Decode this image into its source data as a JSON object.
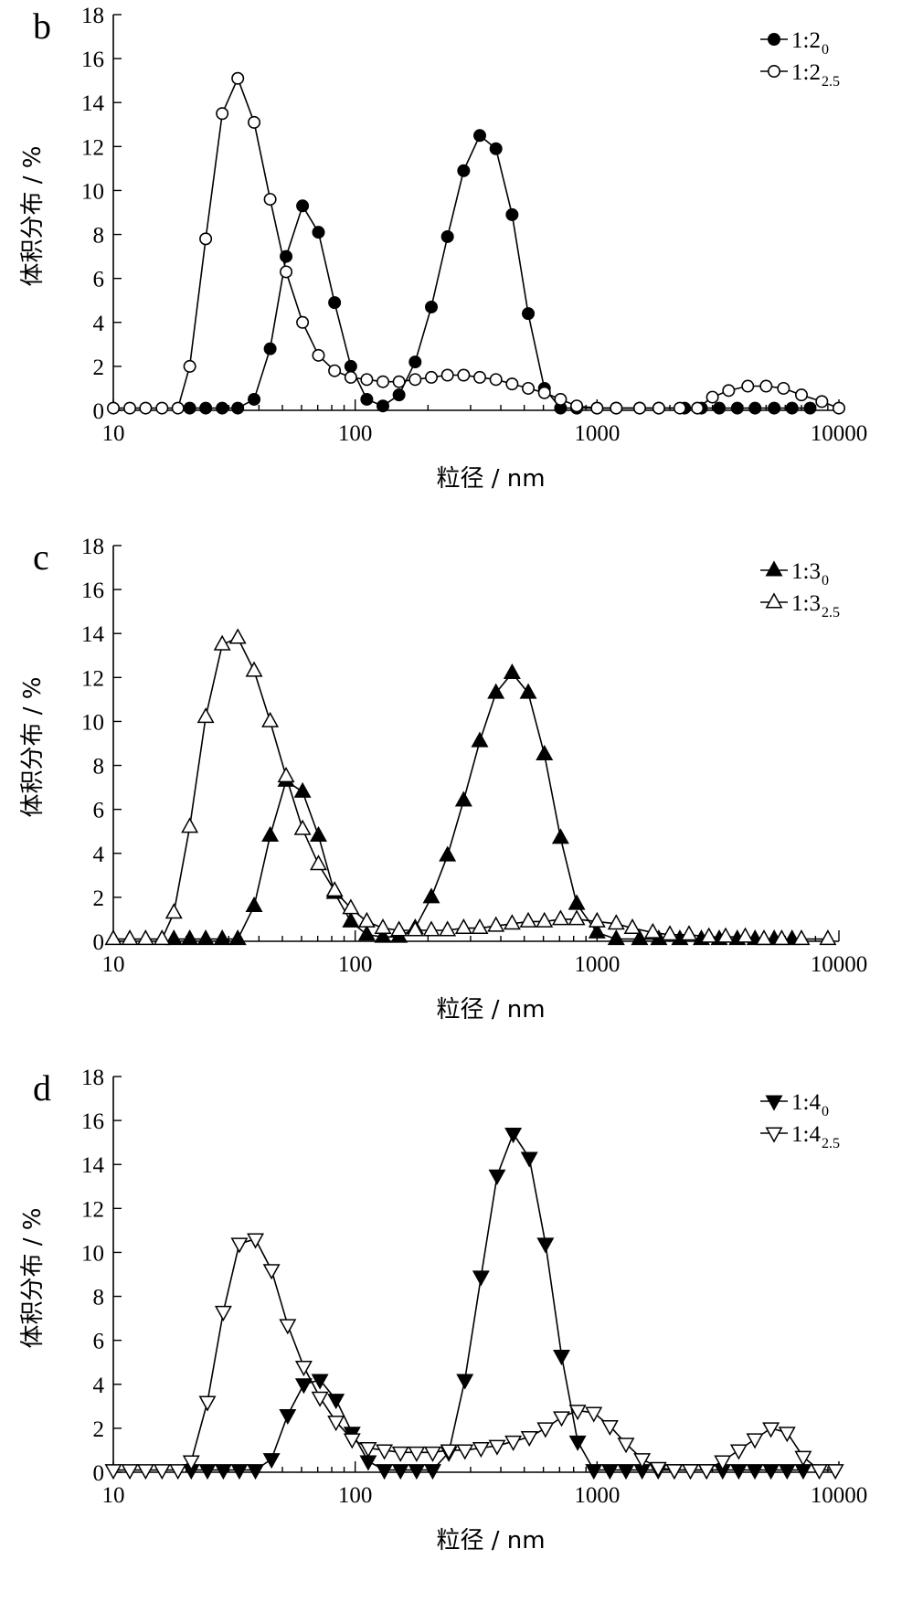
{
  "chart_data": [
    {
      "type": "line",
      "panel": "b",
      "xscale": "log",
      "xlim": [
        10,
        10000
      ],
      "ylim": [
        0,
        18
      ],
      "xticks": [
        "10",
        "100",
        "1000",
        "10000"
      ],
      "yticks": [
        "0",
        "2",
        "4",
        "6",
        "8",
        "10",
        "12",
        "14",
        "16",
        "18"
      ],
      "xlabel": "粒径 / nm",
      "ylabel": "体积分布 / %",
      "legend_position": "top-right",
      "series": [
        {
          "name": "1:2",
          "name_sub": "0",
          "marker": "circle-filled",
          "x": [
            20.7,
            24.1,
            28.2,
            32.7,
            38.2,
            44.5,
            51.8,
            60.6,
            70.5,
            82.2,
            95.9,
            111.7,
            130.2,
            151.8,
            177.0,
            206.5,
            240.8,
            280.8,
            327.4,
            381.9,
            445.4,
            519.4,
            605.8,
            706.5,
            824.0,
            1000,
            1200,
            1500,
            1800,
            2300,
            2700,
            3200,
            3800,
            4500,
            5400,
            6400,
            7600
          ],
          "y": [
            0.1,
            0.1,
            0.1,
            0.1,
            0.5,
            2.8,
            7.0,
            9.3,
            8.1,
            4.9,
            2.0,
            0.5,
            0.2,
            0.7,
            2.2,
            4.7,
            7.9,
            10.9,
            12.5,
            11.9,
            8.9,
            4.4,
            1.0,
            0.1,
            0.1,
            0.1,
            0.1,
            0.1,
            0.1,
            0.1,
            0.1,
            0.1,
            0.1,
            0.1,
            0.1,
            0.1,
            0.1
          ]
        },
        {
          "name": "1:2",
          "name_sub": "2.5",
          "marker": "circle-open",
          "x": [
            10,
            11.7,
            13.6,
            15.9,
            18.5,
            20.7,
            24.1,
            28.2,
            32.7,
            38.2,
            44.5,
            51.8,
            60.6,
            70.5,
            82.2,
            95.9,
            111.7,
            130.2,
            151.8,
            177.0,
            206.5,
            240.8,
            280.8,
            327.4,
            381.9,
            445.4,
            519.4,
            605.8,
            706.5,
            824.0,
            1000,
            1200,
            1500,
            1800,
            2200,
            2600,
            3000,
            3500,
            4200,
            5000,
            5900,
            7000,
            8500,
            10000
          ],
          "y": [
            0.1,
            0.1,
            0.1,
            0.1,
            0.1,
            2.0,
            7.8,
            13.5,
            15.1,
            13.1,
            9.6,
            6.3,
            4.0,
            2.5,
            1.8,
            1.5,
            1.4,
            1.3,
            1.3,
            1.4,
            1.5,
            1.6,
            1.6,
            1.5,
            1.4,
            1.2,
            1.0,
            0.8,
            0.5,
            0.2,
            0.1,
            0.1,
            0.1,
            0.1,
            0.1,
            0.1,
            0.6,
            0.9,
            1.1,
            1.1,
            1.0,
            0.7,
            0.4,
            0.1
          ]
        }
      ]
    },
    {
      "type": "line",
      "panel": "c",
      "xscale": "log",
      "xlim": [
        10,
        10000
      ],
      "ylim": [
        0,
        18
      ],
      "xticks": [
        "10",
        "100",
        "1000",
        "10000"
      ],
      "yticks": [
        "0",
        "2",
        "4",
        "6",
        "8",
        "10",
        "12",
        "14",
        "16",
        "18"
      ],
      "xlabel": "粒径 / nm",
      "ylabel": "体积分布 / %",
      "legend_position": "top-right",
      "series": [
        {
          "name": "1:3",
          "name_sub": "0",
          "marker": "triangle-up-filled",
          "x": [
            17.8,
            20.7,
            24.1,
            28.2,
            32.7,
            38.2,
            44.5,
            51.8,
            60.6,
            70.5,
            82.2,
            95.9,
            111.7,
            130.2,
            151.8,
            177.0,
            206.5,
            240.8,
            280.8,
            327.4,
            381.9,
            445.4,
            519.4,
            605.8,
            706.5,
            824.0,
            1000,
            1200,
            1500,
            1800,
            2200,
            2700,
            3200,
            3800,
            4500,
            5400,
            6400
          ],
          "y": [
            0.1,
            0.1,
            0.1,
            0.1,
            0.1,
            1.6,
            4.8,
            7.3,
            6.8,
            4.8,
            2.2,
            0.9,
            0.3,
            0.2,
            0.2,
            0.6,
            2.0,
            3.9,
            6.4,
            9.1,
            11.3,
            12.2,
            11.3,
            8.5,
            4.7,
            1.7,
            0.4,
            0.1,
            0.1,
            0.1,
            0.1,
            0.1,
            0.1,
            0.1,
            0.1,
            0.1,
            0.1
          ]
        },
        {
          "name": "1:3",
          "name_sub": "2.5",
          "marker": "triangle-up-open",
          "x": [
            10,
            11.7,
            13.6,
            15.9,
            17.8,
            20.7,
            24.1,
            28.2,
            32.7,
            38.2,
            44.5,
            51.8,
            60.6,
            70.5,
            82.2,
            95.9,
            111.7,
            130.2,
            151.8,
            177.0,
            206.5,
            240.8,
            280.8,
            327.4,
            381.9,
            445.4,
            519.4,
            605.8,
            706.5,
            824.0,
            1000,
            1200,
            1400,
            1700,
            2000,
            2400,
            2900,
            3400,
            4100,
            4900,
            5800,
            7000,
            9000
          ],
          "y": [
            0.1,
            0.1,
            0.1,
            0.1,
            1.3,
            5.2,
            10.2,
            13.5,
            13.8,
            12.3,
            10.0,
            7.5,
            5.1,
            3.5,
            2.3,
            1.5,
            0.9,
            0.6,
            0.5,
            0.5,
            0.5,
            0.5,
            0.6,
            0.6,
            0.7,
            0.8,
            0.9,
            0.9,
            1.0,
            1.0,
            0.9,
            0.8,
            0.6,
            0.4,
            0.3,
            0.3,
            0.2,
            0.2,
            0.2,
            0.1,
            0.1,
            0.1,
            0.1
          ]
        }
      ]
    },
    {
      "type": "line",
      "panel": "d",
      "xscale": "log",
      "xlim": [
        10,
        10000
      ],
      "ylim": [
        0,
        18
      ],
      "xticks": [
        "10",
        "100",
        "1000",
        "10000"
      ],
      "yticks": [
        "0",
        "2",
        "4",
        "6",
        "8",
        "10",
        "12",
        "14",
        "16",
        "18"
      ],
      "xlabel": "粒径 / nm",
      "ylabel": "体积分布 / %",
      "legend_position": "top-right",
      "series": [
        {
          "name": "1:4",
          "name_sub": "0",
          "marker": "triangle-down-filled",
          "x": [
            21.0,
            24.5,
            28.5,
            33.2,
            38.7,
            45.1,
            52.6,
            61.3,
            71.5,
            83.3,
            97.1,
            113.2,
            132.0,
            153.9,
            179.4,
            209.1,
            243.8,
            284.2,
            331.3,
            386.2,
            450.2,
            524.8,
            611.8,
            713.3,
            831.5,
            969.4,
            1130,
            1317,
            1536,
            1790,
            2087,
            2432,
            2836,
            3305,
            3853,
            4492,
            5236,
            6104,
            7116
          ],
          "y": [
            0.1,
            0.1,
            0.1,
            0.1,
            0.1,
            0.6,
            2.6,
            4.0,
            4.2,
            3.3,
            1.8,
            0.5,
            0.1,
            0.1,
            0.1,
            0.1,
            0.9,
            4.2,
            8.9,
            13.5,
            15.4,
            14.3,
            10.4,
            5.3,
            1.4,
            0.1,
            0.1,
            0.1,
            0.1,
            0.1,
            0.1,
            0.1,
            0.1,
            0.1,
            0.1,
            0.1,
            0.1,
            0.1,
            0.1
          ]
        },
        {
          "name": "1:4",
          "name_sub": "2.5",
          "marker": "triangle-down-open",
          "x": [
            10,
            11.7,
            13.6,
            15.9,
            18.5,
            21.0,
            24.5,
            28.5,
            33.2,
            38.7,
            45.1,
            52.6,
            61.3,
            71.5,
            83.3,
            97.1,
            113.2,
            132.0,
            153.9,
            179.4,
            209.1,
            243.8,
            284.2,
            331.3,
            386.2,
            450.2,
            524.8,
            611.8,
            713.3,
            831.5,
            969.4,
            1130,
            1317,
            1536,
            1790,
            2087,
            2432,
            2836,
            3305,
            3853,
            4492,
            5236,
            6104,
            7116,
            8295,
            9670
          ],
          "y": [
            0.1,
            0.1,
            0.1,
            0.1,
            0.1,
            0.5,
            3.2,
            7.3,
            10.4,
            10.6,
            9.2,
            6.7,
            4.8,
            3.4,
            2.3,
            1.5,
            1.1,
            1.0,
            0.9,
            0.9,
            0.9,
            1.0,
            1.0,
            1.1,
            1.2,
            1.4,
            1.6,
            2.0,
            2.5,
            2.8,
            2.7,
            2.1,
            1.3,
            0.6,
            0.2,
            0.1,
            0.1,
            0.1,
            0.5,
            1.0,
            1.5,
            2.0,
            1.8,
            0.7,
            0.1,
            0.1
          ]
        }
      ]
    }
  ]
}
